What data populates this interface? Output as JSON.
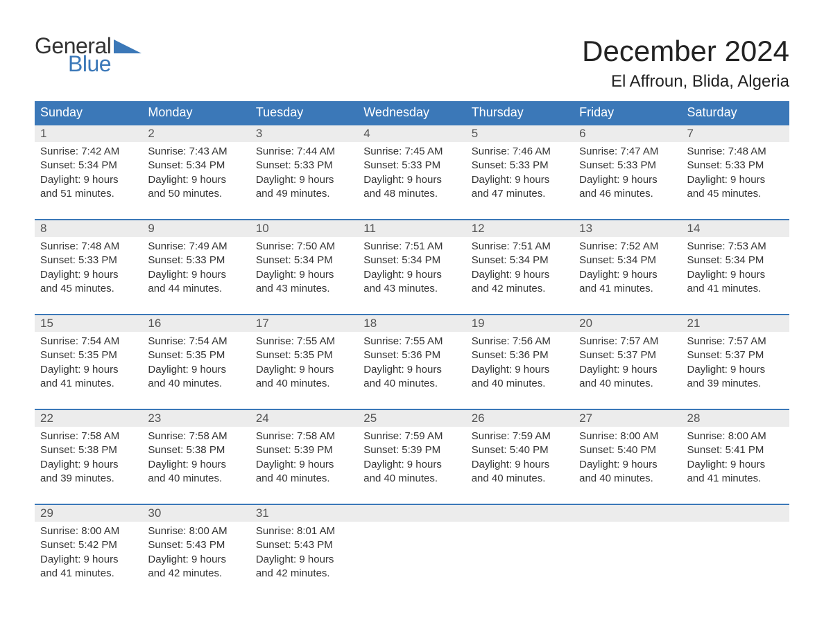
{
  "logo": {
    "word1": "General",
    "word2": "Blue",
    "colors": {
      "text": "#333333",
      "blue": "#3b78b8"
    }
  },
  "title": "December 2024",
  "location": "El Affroun, Blida, Algeria",
  "typography": {
    "title_fontsize": 42,
    "location_fontsize": 24,
    "header_fontsize": 18,
    "cell_fontsize": 15
  },
  "colors": {
    "header_bg": "#3b78b8",
    "header_text": "#ffffff",
    "daynum_bg": "#ececec",
    "daynum_text": "#555555",
    "row_border": "#3b78b8",
    "body_text": "#333333",
    "background": "#ffffff"
  },
  "layout": {
    "columns": 7,
    "rows": 5,
    "week_start": "Sunday"
  },
  "headers": [
    "Sunday",
    "Monday",
    "Tuesday",
    "Wednesday",
    "Thursday",
    "Friday",
    "Saturday"
  ],
  "days": [
    {
      "n": "1",
      "sunrise": "Sunrise: 7:42 AM",
      "sunset": "Sunset: 5:34 PM",
      "d1": "Daylight: 9 hours",
      "d2": "and 51 minutes."
    },
    {
      "n": "2",
      "sunrise": "Sunrise: 7:43 AM",
      "sunset": "Sunset: 5:34 PM",
      "d1": "Daylight: 9 hours",
      "d2": "and 50 minutes."
    },
    {
      "n": "3",
      "sunrise": "Sunrise: 7:44 AM",
      "sunset": "Sunset: 5:33 PM",
      "d1": "Daylight: 9 hours",
      "d2": "and 49 minutes."
    },
    {
      "n": "4",
      "sunrise": "Sunrise: 7:45 AM",
      "sunset": "Sunset: 5:33 PM",
      "d1": "Daylight: 9 hours",
      "d2": "and 48 minutes."
    },
    {
      "n": "5",
      "sunrise": "Sunrise: 7:46 AM",
      "sunset": "Sunset: 5:33 PM",
      "d1": "Daylight: 9 hours",
      "d2": "and 47 minutes."
    },
    {
      "n": "6",
      "sunrise": "Sunrise: 7:47 AM",
      "sunset": "Sunset: 5:33 PM",
      "d1": "Daylight: 9 hours",
      "d2": "and 46 minutes."
    },
    {
      "n": "7",
      "sunrise": "Sunrise: 7:48 AM",
      "sunset": "Sunset: 5:33 PM",
      "d1": "Daylight: 9 hours",
      "d2": "and 45 minutes."
    },
    {
      "n": "8",
      "sunrise": "Sunrise: 7:48 AM",
      "sunset": "Sunset: 5:33 PM",
      "d1": "Daylight: 9 hours",
      "d2": "and 45 minutes."
    },
    {
      "n": "9",
      "sunrise": "Sunrise: 7:49 AM",
      "sunset": "Sunset: 5:33 PM",
      "d1": "Daylight: 9 hours",
      "d2": "and 44 minutes."
    },
    {
      "n": "10",
      "sunrise": "Sunrise: 7:50 AM",
      "sunset": "Sunset: 5:34 PM",
      "d1": "Daylight: 9 hours",
      "d2": "and 43 minutes."
    },
    {
      "n": "11",
      "sunrise": "Sunrise: 7:51 AM",
      "sunset": "Sunset: 5:34 PM",
      "d1": "Daylight: 9 hours",
      "d2": "and 43 minutes."
    },
    {
      "n": "12",
      "sunrise": "Sunrise: 7:51 AM",
      "sunset": "Sunset: 5:34 PM",
      "d1": "Daylight: 9 hours",
      "d2": "and 42 minutes."
    },
    {
      "n": "13",
      "sunrise": "Sunrise: 7:52 AM",
      "sunset": "Sunset: 5:34 PM",
      "d1": "Daylight: 9 hours",
      "d2": "and 41 minutes."
    },
    {
      "n": "14",
      "sunrise": "Sunrise: 7:53 AM",
      "sunset": "Sunset: 5:34 PM",
      "d1": "Daylight: 9 hours",
      "d2": "and 41 minutes."
    },
    {
      "n": "15",
      "sunrise": "Sunrise: 7:54 AM",
      "sunset": "Sunset: 5:35 PM",
      "d1": "Daylight: 9 hours",
      "d2": "and 41 minutes."
    },
    {
      "n": "16",
      "sunrise": "Sunrise: 7:54 AM",
      "sunset": "Sunset: 5:35 PM",
      "d1": "Daylight: 9 hours",
      "d2": "and 40 minutes."
    },
    {
      "n": "17",
      "sunrise": "Sunrise: 7:55 AM",
      "sunset": "Sunset: 5:35 PM",
      "d1": "Daylight: 9 hours",
      "d2": "and 40 minutes."
    },
    {
      "n": "18",
      "sunrise": "Sunrise: 7:55 AM",
      "sunset": "Sunset: 5:36 PM",
      "d1": "Daylight: 9 hours",
      "d2": "and 40 minutes."
    },
    {
      "n": "19",
      "sunrise": "Sunrise: 7:56 AM",
      "sunset": "Sunset: 5:36 PM",
      "d1": "Daylight: 9 hours",
      "d2": "and 40 minutes."
    },
    {
      "n": "20",
      "sunrise": "Sunrise: 7:57 AM",
      "sunset": "Sunset: 5:37 PM",
      "d1": "Daylight: 9 hours",
      "d2": "and 40 minutes."
    },
    {
      "n": "21",
      "sunrise": "Sunrise: 7:57 AM",
      "sunset": "Sunset: 5:37 PM",
      "d1": "Daylight: 9 hours",
      "d2": "and 39 minutes."
    },
    {
      "n": "22",
      "sunrise": "Sunrise: 7:58 AM",
      "sunset": "Sunset: 5:38 PM",
      "d1": "Daylight: 9 hours",
      "d2": "and 39 minutes."
    },
    {
      "n": "23",
      "sunrise": "Sunrise: 7:58 AM",
      "sunset": "Sunset: 5:38 PM",
      "d1": "Daylight: 9 hours",
      "d2": "and 40 minutes."
    },
    {
      "n": "24",
      "sunrise": "Sunrise: 7:58 AM",
      "sunset": "Sunset: 5:39 PM",
      "d1": "Daylight: 9 hours",
      "d2": "and 40 minutes."
    },
    {
      "n": "25",
      "sunrise": "Sunrise: 7:59 AM",
      "sunset": "Sunset: 5:39 PM",
      "d1": "Daylight: 9 hours",
      "d2": "and 40 minutes."
    },
    {
      "n": "26",
      "sunrise": "Sunrise: 7:59 AM",
      "sunset": "Sunset: 5:40 PM",
      "d1": "Daylight: 9 hours",
      "d2": "and 40 minutes."
    },
    {
      "n": "27",
      "sunrise": "Sunrise: 8:00 AM",
      "sunset": "Sunset: 5:40 PM",
      "d1": "Daylight: 9 hours",
      "d2": "and 40 minutes."
    },
    {
      "n": "28",
      "sunrise": "Sunrise: 8:00 AM",
      "sunset": "Sunset: 5:41 PM",
      "d1": "Daylight: 9 hours",
      "d2": "and 41 minutes."
    },
    {
      "n": "29",
      "sunrise": "Sunrise: 8:00 AM",
      "sunset": "Sunset: 5:42 PM",
      "d1": "Daylight: 9 hours",
      "d2": "and 41 minutes."
    },
    {
      "n": "30",
      "sunrise": "Sunrise: 8:00 AM",
      "sunset": "Sunset: 5:43 PM",
      "d1": "Daylight: 9 hours",
      "d2": "and 42 minutes."
    },
    {
      "n": "31",
      "sunrise": "Sunrise: 8:01 AM",
      "sunset": "Sunset: 5:43 PM",
      "d1": "Daylight: 9 hours",
      "d2": "and 42 minutes."
    }
  ]
}
